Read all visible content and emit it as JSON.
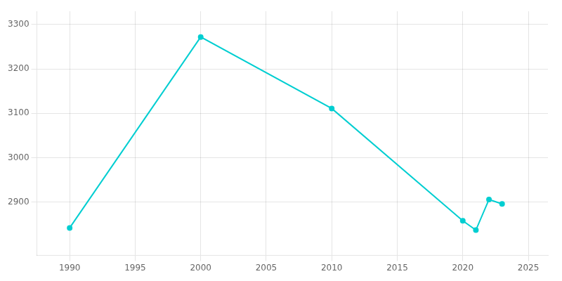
{
  "chart_data": {
    "type": "line",
    "x": [
      1990,
      2000,
      2010,
      2020,
      2021,
      2022,
      2023
    ],
    "values": [
      2842,
      3272,
      3111,
      2858,
      2837,
      2906,
      2896
    ],
    "color": "#00CED1",
    "marker": "circle",
    "xlim": [
      1987.5,
      2026.5
    ],
    "ylim": [
      2780,
      3330
    ],
    "xticks": [
      1990,
      1995,
      2000,
      2005,
      2010,
      2015,
      2020,
      2025
    ],
    "yticks": [
      2900,
      3000,
      3100,
      3200,
      3300
    ],
    "grid": true
  }
}
